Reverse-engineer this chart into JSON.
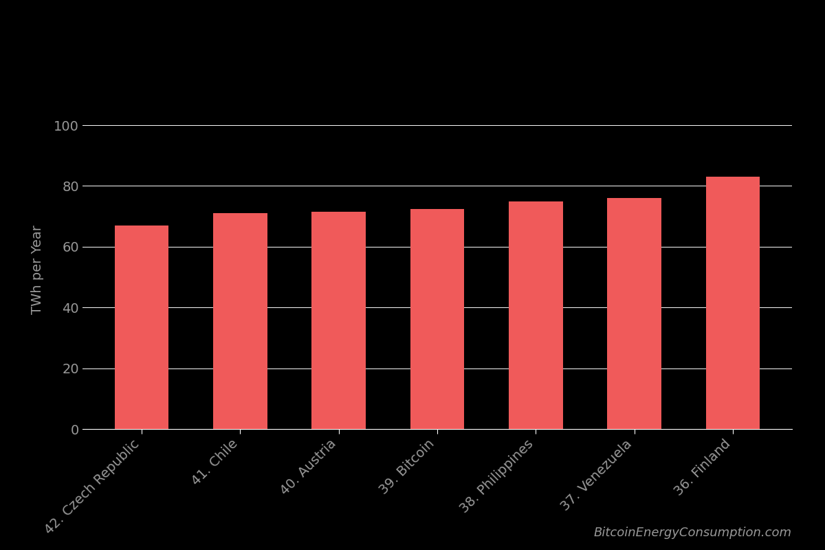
{
  "categories": [
    "42. Czech Republic",
    "41. Chile",
    "40. Austria",
    "39. Bitcoin",
    "38. Philippines",
    "37. Venezuela",
    "36. Finland"
  ],
  "values": [
    67,
    71,
    71.5,
    72.5,
    75,
    76,
    83
  ],
  "bar_color": "#f05a5a",
  "background_color": "#000000",
  "grid_color": "#ffffff",
  "text_color": "#999999",
  "ylabel": "TWh per Year",
  "ylim": [
    0,
    105
  ],
  "yticks": [
    0,
    20,
    40,
    60,
    80,
    100
  ],
  "watermark": "BitcoinEnergyConsumption.com",
  "bar_width": 0.55,
  "ylabel_fontsize": 14,
  "tick_fontsize": 14,
  "watermark_fontsize": 13
}
